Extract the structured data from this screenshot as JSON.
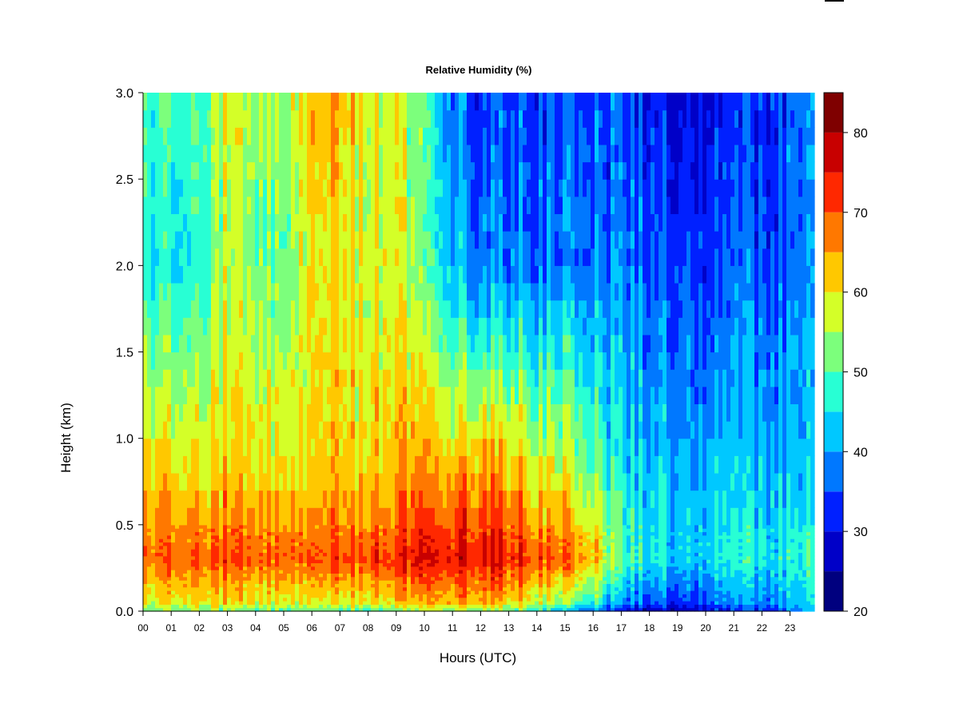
{
  "chart_data": {
    "type": "heatmap",
    "title": "Relative Humidity (%)",
    "xlabel": "Hours (UTC)",
    "ylabel": "Height (km)",
    "x_ticks": [
      "00",
      "01",
      "02",
      "03",
      "04",
      "05",
      "06",
      "07",
      "08",
      "09",
      "10",
      "11",
      "12",
      "13",
      "14",
      "15",
      "16",
      "17",
      "18",
      "19",
      "20",
      "21",
      "22",
      "23"
    ],
    "y_ticks": [
      "0.0",
      "0.5",
      "1.0",
      "1.5",
      "2.0",
      "2.5",
      "3.0"
    ],
    "xlim": [
      0,
      23.9
    ],
    "ylim": [
      0,
      3.0
    ],
    "colorbar": {
      "ticks": [
        "20",
        "30",
        "40",
        "50",
        "60",
        "70",
        "80"
      ],
      "range": [
        20,
        85
      ],
      "levels": [
        20,
        25,
        30,
        35,
        40,
        45,
        50,
        55,
        60,
        65,
        70,
        75,
        80,
        85
      ],
      "colors": [
        "#00007f",
        "#0000c8",
        "#0020ff",
        "#0078ff",
        "#00c8ff",
        "#28ffd4",
        "#7cff7c",
        "#d4ff28",
        "#ffc800",
        "#ff7800",
        "#ff2800",
        "#c80000",
        "#7f0000"
      ]
    },
    "grid": false
  }
}
